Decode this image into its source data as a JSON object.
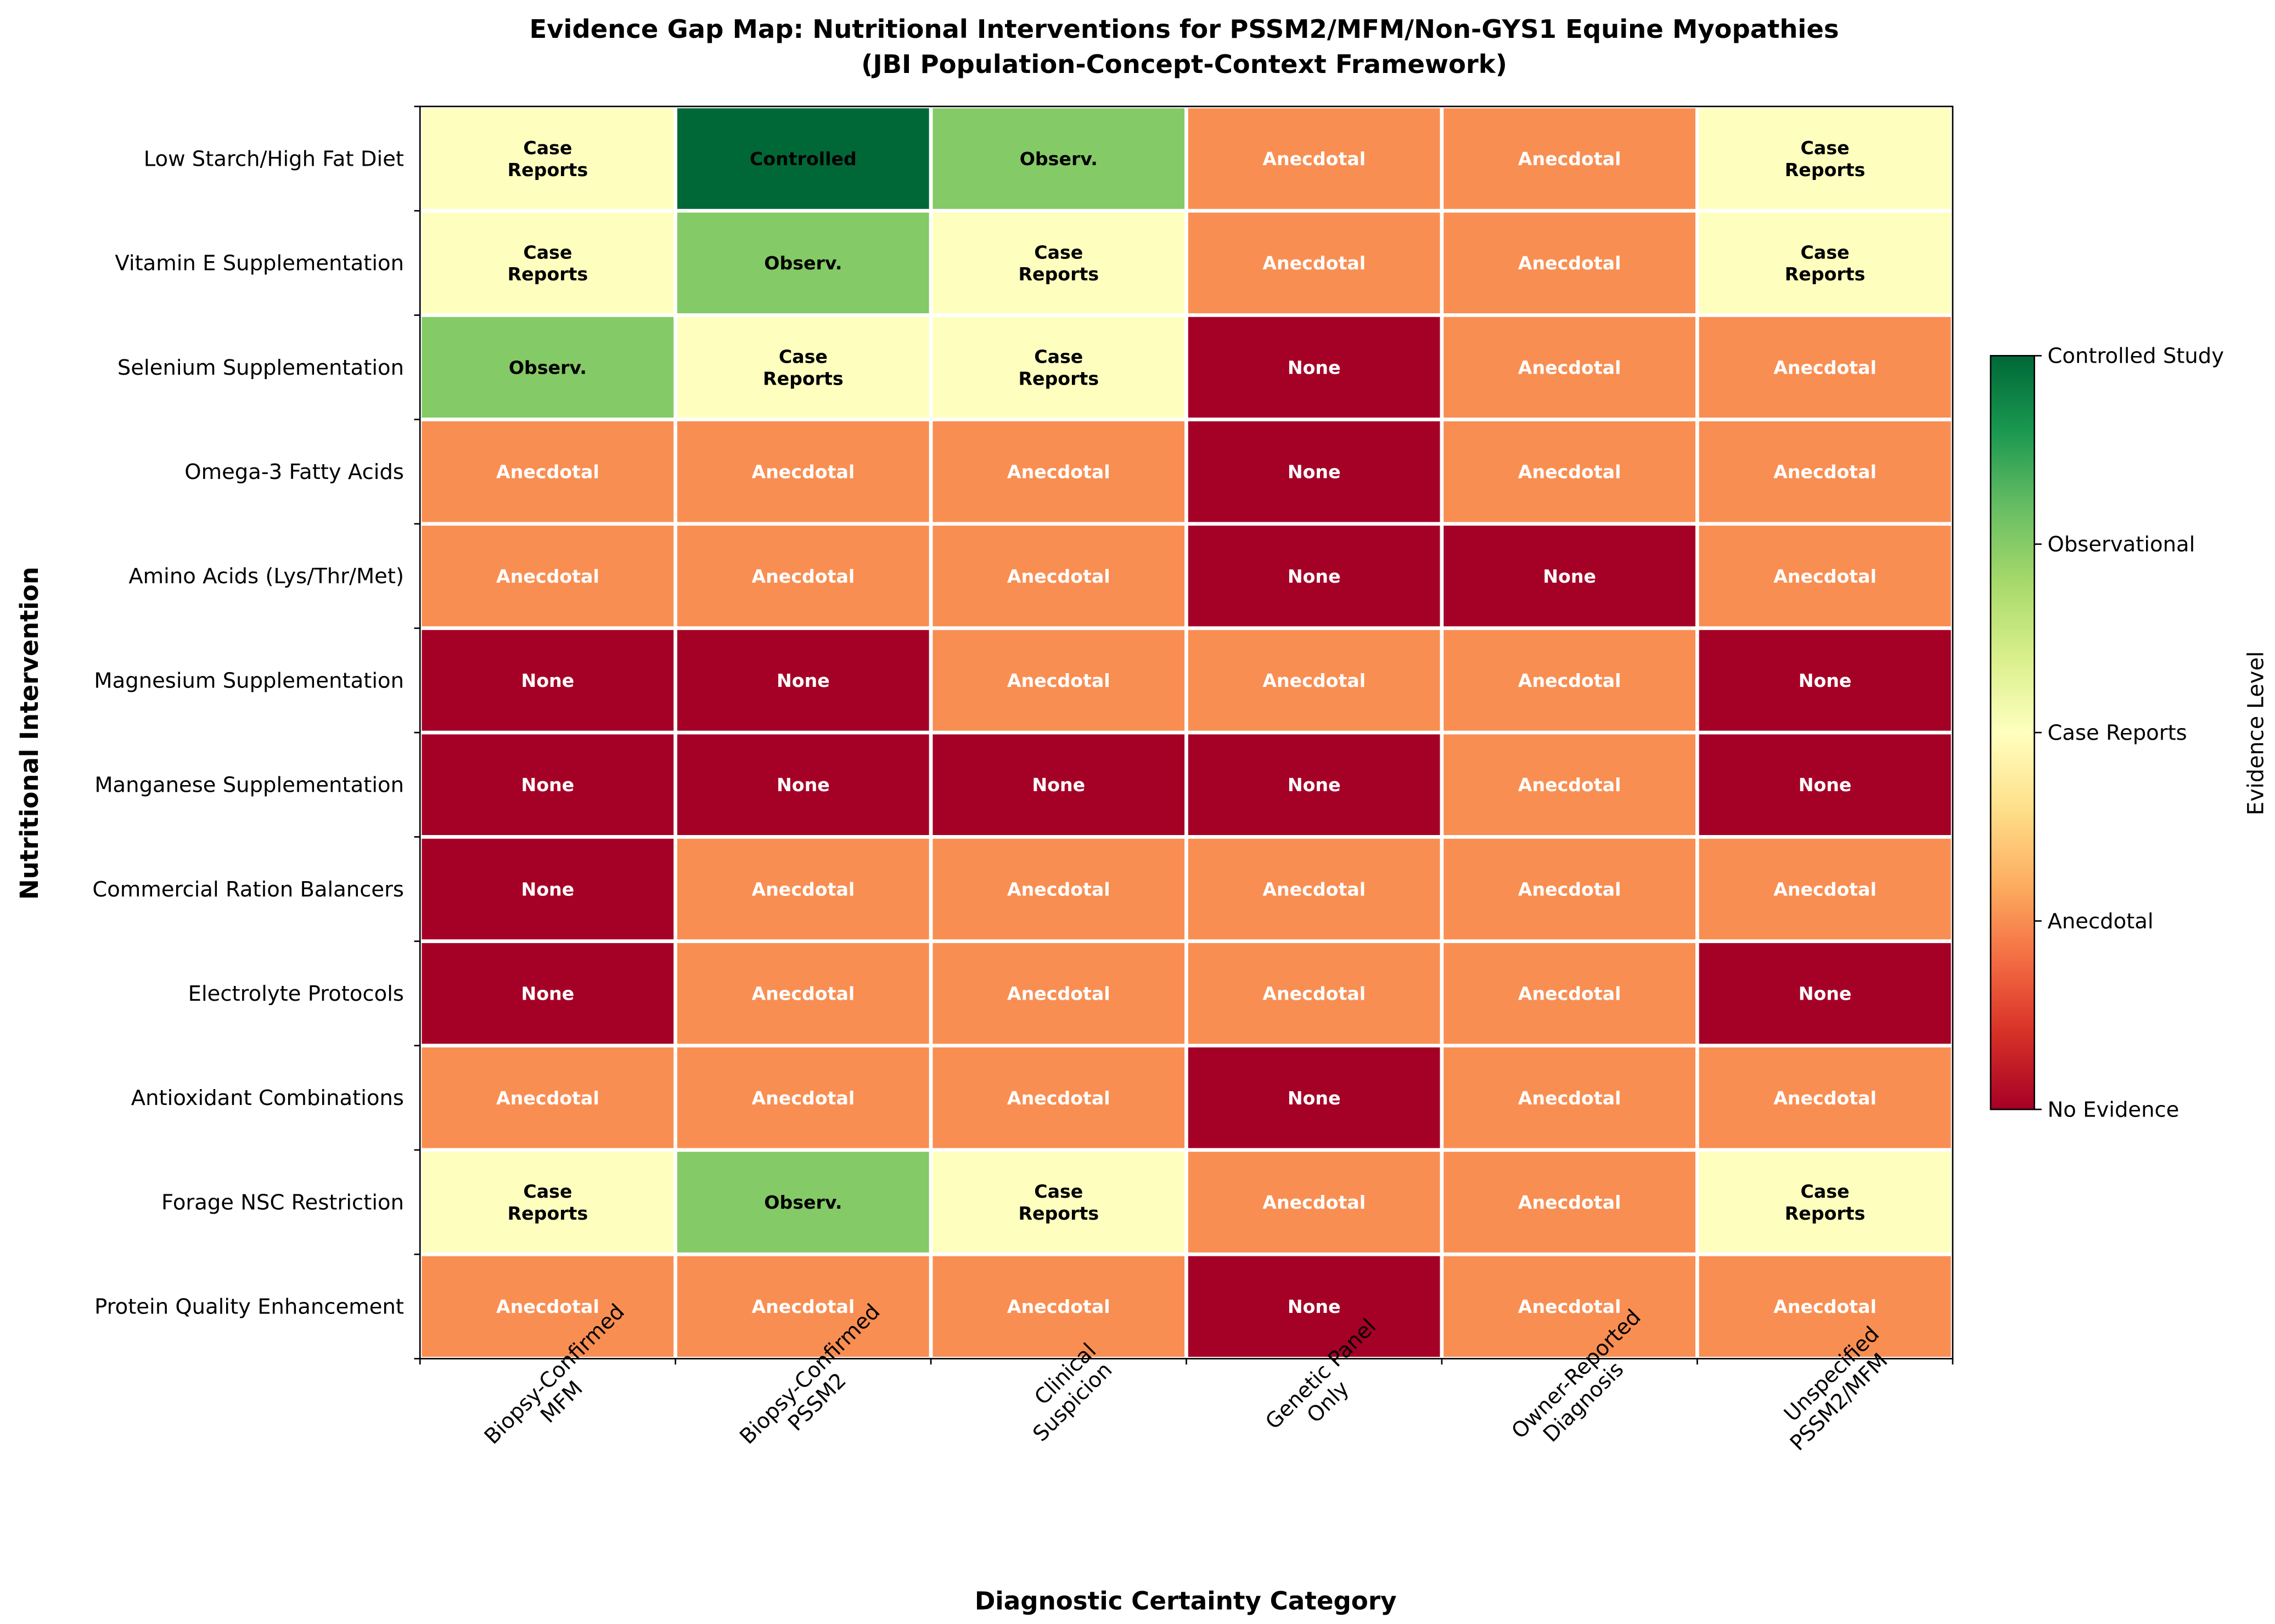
{
  "chart_data": {
    "type": "heatmap",
    "title": "Evidence Gap Map: Nutritional Interventions for PSSM2/MFM/Non-GYS1 Equine Myopathies",
    "subtitle": "(JBI Population-Concept-Context Framework)",
    "xlabel": "Diagnostic Certainty Category",
    "ylabel": "Nutritional Intervention",
    "columns": [
      "Biopsy-Confirmed\nMFM",
      "Biopsy-Confirmed\nPSSM2",
      "Clinical\nSuspicion",
      "Genetic Panel\nOnly",
      "Owner-Reported\nDiagnosis",
      "Unspecified\nPSSM2/MFM"
    ],
    "rows": [
      "Low Starch/High Fat Diet",
      "Vitamin E Supplementation",
      "Selenium Supplementation",
      "Omega-3 Fatty Acids",
      "Amino Acids (Lys/Thr/Met)",
      "Magnesium Supplementation",
      "Manganese Supplementation",
      "Commercial Ration Balancers",
      "Electrolyte Protocols",
      "Antioxidant Combinations",
      "Forage NSC Restriction",
      "Protein Quality Enhancement"
    ],
    "values": [
      [
        2,
        4,
        3,
        1,
        1,
        2
      ],
      [
        2,
        3,
        2,
        1,
        1,
        2
      ],
      [
        3,
        2,
        2,
        0,
        1,
        1
      ],
      [
        1,
        1,
        1,
        0,
        1,
        1
      ],
      [
        1,
        1,
        1,
        0,
        0,
        1
      ],
      [
        0,
        0,
        1,
        1,
        1,
        0
      ],
      [
        0,
        0,
        0,
        0,
        1,
        0
      ],
      [
        0,
        1,
        1,
        1,
        1,
        1
      ],
      [
        0,
        1,
        1,
        1,
        1,
        0
      ],
      [
        1,
        1,
        1,
        0,
        1,
        1
      ],
      [
        2,
        3,
        2,
        1,
        1,
        2
      ],
      [
        1,
        1,
        1,
        0,
        1,
        1
      ]
    ],
    "cell_labels": [
      "None",
      "Anecdotal",
      "Case\nReports",
      "Observ.",
      "Controlled"
    ],
    "level_colors": [
      "#a50026",
      "#f98e52",
      "#feffbe",
      "#84ca66",
      "#006837"
    ],
    "colorbar": {
      "label": "Evidence Level",
      "range": [
        0,
        4
      ],
      "ticks": [
        0,
        1,
        2,
        3,
        4
      ],
      "tick_labels": [
        "No Evidence",
        "Anecdotal",
        "Case Reports",
        "Observational",
        "Controlled Study"
      ],
      "colormap": "RdYlGn"
    }
  }
}
